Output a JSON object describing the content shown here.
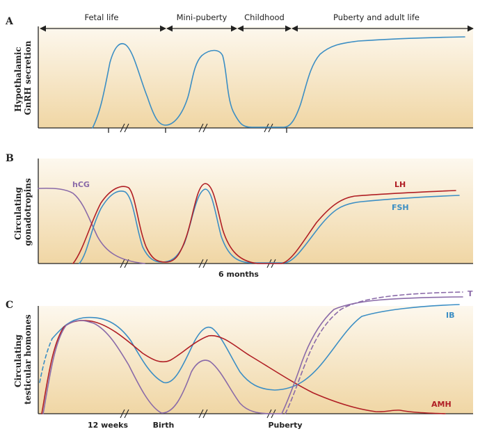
{
  "colors": {
    "blue": "#3b8ec4",
    "red": "#b01e24",
    "purple": "#8a6aa8",
    "bg_top": "#fdf8ee",
    "bg_bottom": "#f0d6a4"
  },
  "panel_a": {
    "letter": "A",
    "ylabel_line1": "Hypothalamic",
    "ylabel_line2": "GnRH secretion",
    "phases": [
      "Fetal life",
      "Mini-puberty",
      "Childhood",
      "Puberty and adult life"
    ]
  },
  "panel_b": {
    "letter": "B",
    "ylabel_line1": "Circulating",
    "ylabel_line2": "gonadotropins",
    "labels": {
      "hcg": "hCG",
      "lh": "LH",
      "fsh": "FSH"
    },
    "xlabel": "6 months"
  },
  "panel_c": {
    "letter": "C",
    "ylabel_line1": "Circulating",
    "ylabel_line2": "testicular homones",
    "labels": {
      "t": "T",
      "ib": "IB",
      "amh": "AMH"
    },
    "xlabels": [
      "12 weeks",
      "Birth",
      "Puberty"
    ]
  }
}
